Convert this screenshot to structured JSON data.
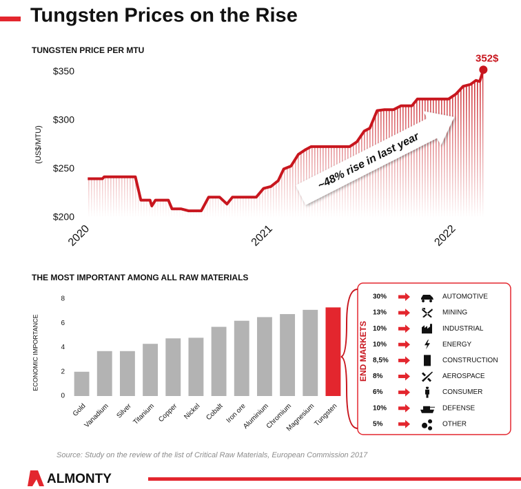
{
  "title": "Tungsten Prices on the Rise",
  "chart_data": [
    {
      "type": "line",
      "title": "TUNGSTEN PRICE PER MTU",
      "y_label": "(US$/MTU)",
      "color": "#c8161e",
      "x": [
        2020.0,
        2020.08,
        2020.09,
        2020.26,
        2020.29,
        2020.34,
        2020.35,
        2020.37,
        2020.44,
        2020.46,
        2020.51,
        2020.55,
        2020.62,
        2020.66,
        2020.72,
        2020.76,
        2020.79,
        2020.92,
        2020.96,
        2021.0,
        2021.04,
        2021.07,
        2021.11,
        2021.15,
        2021.19,
        2021.22,
        2021.43,
        2021.47,
        2021.51,
        2021.54,
        2021.58,
        2021.62,
        2021.67,
        2021.71,
        2021.77,
        2021.8,
        2021.97,
        2022.01,
        2022.05,
        2022.09,
        2022.12,
        2022.14,
        2022.16
      ],
      "values": [
        240,
        240,
        242,
        242,
        218,
        218,
        212,
        218,
        218,
        209,
        209,
        207,
        207,
        221,
        221,
        214,
        221,
        221,
        230,
        232,
        238,
        250,
        253,
        265,
        270,
        273,
        273,
        278,
        289,
        292,
        310,
        311,
        311,
        315,
        315,
        322,
        322,
        327,
        335,
        337,
        341,
        340,
        352
      ],
      "xlim": [
        2019.98,
        2022.2
      ],
      "xticks": [
        2020,
        2021,
        2022
      ],
      "ylim": [
        200,
        360
      ],
      "yticks": [
        {
          "value": 200,
          "label": "$200"
        },
        {
          "value": 250,
          "label": "$250"
        },
        {
          "value": 300,
          "label": "$300"
        },
        {
          "value": 350,
          "label": "$350"
        }
      ],
      "end_label": "352$",
      "annotation": "~48% rise in last year"
    },
    {
      "type": "bar",
      "title": "THE MOST IMPORTANT AMONG ALL RAW MATERIALS",
      "y_label": "ECONOMIC IMPORTANCE",
      "categories": [
        "Gold",
        "Vanadium",
        "Silver",
        "Titanium",
        "Copper",
        "Nickel",
        "Cobalt",
        "Iron ore",
        "Aluminium",
        "Chromium",
        "Magnesium",
        "Tungsten"
      ],
      "values": [
        2.0,
        3.7,
        3.7,
        4.3,
        4.75,
        4.8,
        5.7,
        6.2,
        6.5,
        6.75,
        7.1,
        7.3
      ],
      "colors": [
        "#b3b3b3",
        "#b3b3b3",
        "#b3b3b3",
        "#b3b3b3",
        "#b3b3b3",
        "#b3b3b3",
        "#b3b3b3",
        "#b3b3b3",
        "#b3b3b3",
        "#b3b3b3",
        "#b3b3b3",
        "#e3262e"
      ],
      "ylim": [
        0,
        8
      ],
      "yticks": [
        0,
        2,
        4,
        6,
        8
      ]
    }
  ],
  "end_markets": {
    "label": "END MARKETS",
    "items": [
      [
        "30%",
        "AUTOMOTIVE"
      ],
      [
        "13%",
        "MINING"
      ],
      [
        "10%",
        "INDUSTRIAL"
      ],
      [
        "10%",
        "ENERGY"
      ],
      [
        "8,5%",
        "CONSTRUCTION"
      ],
      [
        "8%",
        "AEROSPACE"
      ],
      [
        "6%",
        "CONSUMER"
      ],
      [
        "10%",
        "DEFENSE"
      ],
      [
        "5%",
        "OTHER"
      ]
    ]
  },
  "source": "Source: Study on the review of the list of Critical Raw Materials, European Commission 2017",
  "logo": "ALMONTY"
}
